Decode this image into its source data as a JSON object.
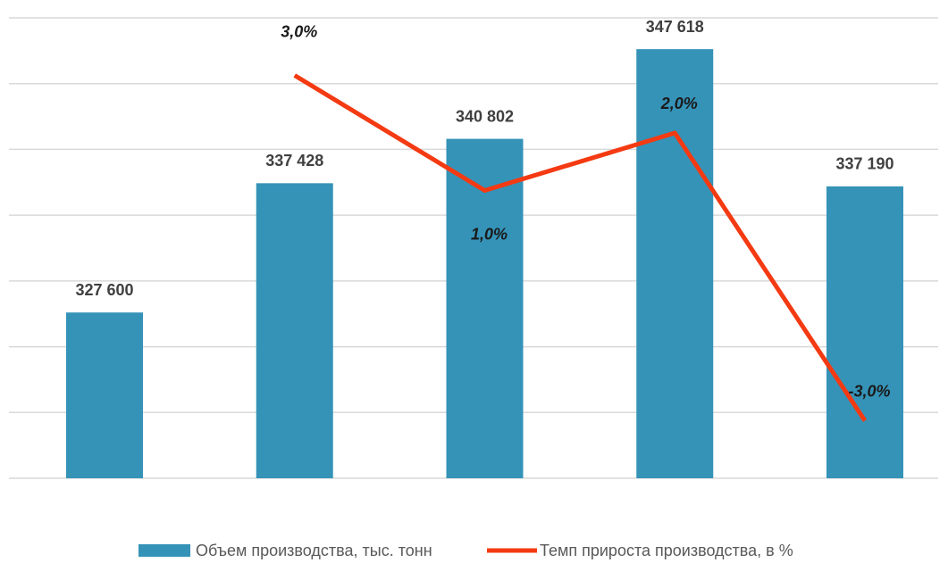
{
  "chart_data": {
    "type": "bar",
    "categories": [
      null,
      null,
      null,
      null,
      null
    ],
    "ylim": [
      315000,
      350000
    ],
    "yticks": [
      315000,
      320000,
      325000,
      330000,
      335000,
      340000,
      345000,
      350000
    ],
    "grid": true,
    "y2lim": [
      -4,
      4
    ],
    "legend": "bottom",
    "series": [
      {
        "name": "Объем производства, тыс. тонн",
        "type": "bar",
        "color": "#3593b8",
        "values": [
          327600,
          337428,
          340802,
          347618,
          337190
        ],
        "value_labels": [
          "327 600",
          "337 428",
          "340 802",
          "347 618",
          "337 190"
        ]
      },
      {
        "name": "Темп прироста производства, в %",
        "type": "line",
        "axis": "y2",
        "color": "#f43a12",
        "values": [
          null,
          3.0,
          1.0,
          2.0,
          -3.0
        ],
        "value_labels": [
          null,
          "3,0%",
          "1,0%",
          "2,0%",
          "-3,0%"
        ]
      }
    ]
  }
}
